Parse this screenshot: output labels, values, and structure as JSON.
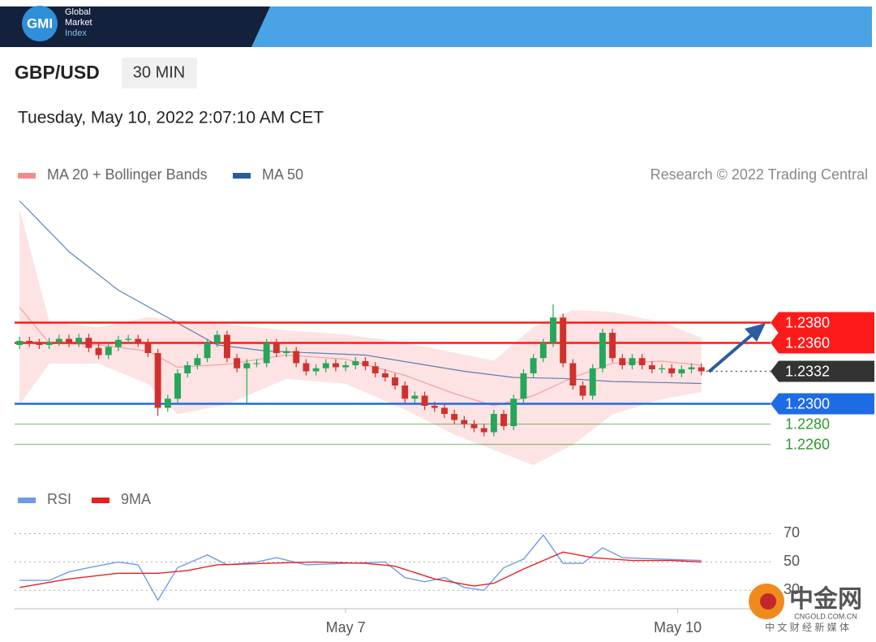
{
  "page": {
    "header": {
      "logo": "GMI",
      "brand": [
        "Global",
        "Market",
        "Index"
      ]
    },
    "symbol": "GBP/USD",
    "interval": "30 MIN",
    "timestamp": "Tuesday, May 10, 2022 2:07:10 AM CET",
    "watermark": {
      "name": "中金网",
      "site": "CNGOLD.COM.CN",
      "slogan": "中 文 财 经 新 媒 体"
    }
  },
  "chart_data": [
    {
      "type": "candlestick",
      "credit": "Research © 2022 Trading Central",
      "xlim": [
        -0.5,
        76
      ],
      "ylim": [
        1.223,
        1.2506
      ],
      "up_color": "#26a65b",
      "down_color": "#d0312d",
      "x": [
        0,
        1,
        2,
        3,
        4,
        5,
        6,
        7,
        8,
        9,
        10,
        11,
        12,
        13,
        14,
        15,
        16,
        17,
        18,
        19,
        20,
        21,
        22,
        23,
        24,
        25,
        26,
        27,
        28,
        29,
        30,
        31,
        32,
        33,
        34,
        35,
        36,
        37,
        38,
        39,
        40,
        41,
        42,
        43,
        44,
        45,
        46,
        47,
        48,
        49,
        50,
        51,
        52,
        53,
        54,
        55,
        56,
        57,
        58,
        59,
        60,
        61,
        62,
        63,
        64,
        65,
        66,
        67,
        68,
        69
      ],
      "open": [
        1.2358,
        1.2362,
        1.236,
        1.2358,
        1.2361,
        1.2364,
        1.236,
        1.2365,
        1.2355,
        1.2348,
        1.2356,
        1.2363,
        1.2364,
        1.236,
        1.235,
        1.2296,
        1.2305,
        1.233,
        1.2338,
        1.2345,
        1.236,
        1.2368,
        1.2345,
        1.2335,
        1.234,
        1.234,
        1.236,
        1.235,
        1.2352,
        1.234,
        1.2332,
        1.2335,
        1.234,
        1.2336,
        1.2338,
        1.2342,
        1.2337,
        1.233,
        1.2326,
        1.2318,
        1.2305,
        1.2308,
        1.2298,
        1.2296,
        1.229,
        1.2284,
        1.228,
        1.2276,
        1.2272,
        1.229,
        1.2278,
        1.2305,
        1.233,
        1.2345,
        1.236,
        1.2385,
        1.234,
        1.2318,
        1.2308,
        1.2335,
        1.237,
        1.2345,
        1.2338,
        1.2345,
        1.2338,
        1.2334,
        1.2335,
        1.233,
        1.2334,
        1.2336
      ],
      "high": [
        1.2366,
        1.2366,
        1.2364,
        1.2365,
        1.2368,
        1.2368,
        1.2369,
        1.2369,
        1.2359,
        1.236,
        1.2367,
        1.2368,
        1.2368,
        1.2364,
        1.2354,
        1.2309,
        1.2334,
        1.2342,
        1.2349,
        1.2364,
        1.2372,
        1.2372,
        1.2349,
        1.2344,
        1.2344,
        1.2364,
        1.2364,
        1.2356,
        1.2356,
        1.2344,
        1.2339,
        1.2344,
        1.2344,
        1.2342,
        1.2346,
        1.2346,
        1.2341,
        1.2334,
        1.233,
        1.2322,
        1.2312,
        1.2312,
        1.2302,
        1.23,
        1.2294,
        1.2288,
        1.2284,
        1.228,
        1.2294,
        1.2294,
        1.2309,
        1.2334,
        1.2349,
        1.2364,
        1.2398,
        1.2389,
        1.2344,
        1.2322,
        1.2339,
        1.2374,
        1.2374,
        1.2349,
        1.2349,
        1.2349,
        1.2342,
        1.2339,
        1.2339,
        1.2338,
        1.234,
        1.234
      ],
      "low": [
        1.2354,
        1.2356,
        1.2354,
        1.2354,
        1.2357,
        1.2356,
        1.2356,
        1.2351,
        1.2344,
        1.2344,
        1.2352,
        1.2359,
        1.2356,
        1.2346,
        1.2288,
        1.2292,
        1.2301,
        1.2326,
        1.2334,
        1.2341,
        1.2356,
        1.2341,
        1.2331,
        1.23,
        1.2336,
        1.2336,
        1.2346,
        1.2346,
        1.2336,
        1.2328,
        1.2328,
        1.2331,
        1.2332,
        1.2332,
        1.2334,
        1.2333,
        1.2326,
        1.2322,
        1.2314,
        1.2301,
        1.2301,
        1.2294,
        1.2292,
        1.2286,
        1.228,
        1.2276,
        1.2272,
        1.2268,
        1.2268,
        1.2274,
        1.2274,
        1.2301,
        1.2326,
        1.2341,
        1.2356,
        1.2336,
        1.2314,
        1.2304,
        1.2304,
        1.2331,
        1.2341,
        1.2334,
        1.2334,
        1.2334,
        1.233,
        1.233,
        1.2326,
        1.2326,
        1.233,
        1.2328
      ],
      "close": [
        1.2362,
        1.236,
        1.2358,
        1.2361,
        1.2364,
        1.236,
        1.2365,
        1.2355,
        1.2348,
        1.2356,
        1.2363,
        1.2364,
        1.236,
        1.235,
        1.2296,
        1.2305,
        1.233,
        1.2338,
        1.2345,
        1.236,
        1.2368,
        1.2345,
        1.2335,
        1.234,
        1.234,
        1.236,
        1.235,
        1.2352,
        1.234,
        1.2332,
        1.2335,
        1.234,
        1.2336,
        1.2338,
        1.2342,
        1.2337,
        1.233,
        1.2326,
        1.2318,
        1.2305,
        1.2308,
        1.2298,
        1.2296,
        1.229,
        1.2284,
        1.228,
        1.2276,
        1.2272,
        1.229,
        1.2278,
        1.2305,
        1.233,
        1.2345,
        1.236,
        1.2385,
        1.234,
        1.2318,
        1.2308,
        1.2335,
        1.237,
        1.2345,
        1.2338,
        1.2345,
        1.2338,
        1.2334,
        1.2335,
        1.233,
        1.2334,
        1.2336,
        1.2332
      ],
      "series": [
        {
          "name": "MA 20 + Bollinger Bands",
          "color": "#f28b8b",
          "band_color": "#fde3e3",
          "x": [
            0,
            3,
            8,
            13,
            16,
            21,
            27,
            33,
            39,
            44,
            48,
            52,
            56,
            60,
            65,
            69
          ],
          "values": [
            1.2395,
            1.236,
            1.2358,
            1.2352,
            1.2336,
            1.2339,
            1.2348,
            1.2344,
            1.2328,
            1.231,
            1.2298,
            1.2308,
            1.2326,
            1.234,
            1.2342,
            1.2338
          ],
          "upper": [
            1.249,
            1.238,
            1.2375,
            1.2385,
            1.2382,
            1.2378,
            1.2372,
            1.2368,
            1.236,
            1.235,
            1.2342,
            1.2375,
            1.2392,
            1.239,
            1.238,
            1.2365
          ],
          "lower": [
            1.23,
            1.234,
            1.234,
            1.232,
            1.229,
            1.23,
            1.2325,
            1.232,
            1.2295,
            1.227,
            1.2255,
            1.224,
            1.226,
            1.229,
            1.2305,
            1.2312
          ]
        },
        {
          "name": "MA 50",
          "color": "#2a5d9f",
          "x": [
            0,
            5,
            10,
            15,
            20,
            25,
            30,
            35,
            40,
            45,
            50,
            55,
            60,
            65,
            69
          ],
          "values": [
            1.25,
            1.245,
            1.2412,
            1.2385,
            1.2358,
            1.2352,
            1.235,
            1.2348,
            1.234,
            1.2332,
            1.2326,
            1.2325,
            1.2322,
            1.2321,
            1.232
          ]
        }
      ],
      "levels": [
        {
          "value": 1.238,
          "label": "1.2380",
          "color": "#ff1a1a",
          "label_style": "tag"
        },
        {
          "value": 1.236,
          "label": "1.2360",
          "color": "#ff1a1a",
          "label_style": "tag"
        },
        {
          "value": 1.23,
          "label": "1.2300",
          "color": "#1e6be6",
          "label_style": "tag"
        },
        {
          "value": 1.228,
          "label": "1.2280",
          "color": "#2e9a2e",
          "label_style": "text"
        },
        {
          "value": 1.226,
          "label": "1.2260",
          "color": "#2e9a2e",
          "label_style": "text"
        }
      ],
      "last_price": 1.2332,
      "last_price_color": "#333333"
    },
    {
      "type": "line",
      "xlim": [
        -0.5,
        76
      ],
      "ylim": [
        17,
        80
      ],
      "yticks": [
        30,
        50,
        70
      ],
      "grid": true,
      "xticks": [
        {
          "value": 33,
          "label": "May 7"
        },
        {
          "value": 66.6,
          "label": "May 10"
        }
      ],
      "series": [
        {
          "name": "RSI",
          "color": "#6e9be6",
          "x": [
            0,
            3,
            5,
            7,
            10,
            12,
            14,
            16,
            19,
            21,
            24,
            26,
            29,
            33,
            37,
            39,
            41,
            43,
            45,
            47,
            49,
            51,
            53,
            55,
            57,
            59,
            61,
            65,
            69
          ],
          "values": [
            37,
            37,
            43,
            46,
            50,
            48,
            23,
            46,
            55,
            48,
            50,
            53,
            48,
            49,
            50,
            39,
            36,
            39,
            32,
            30,
            46,
            52,
            69,
            49,
            49,
            60,
            53,
            52,
            51
          ]
        },
        {
          "name": "9MA",
          "color": "#e62020",
          "x": [
            0,
            5,
            10,
            14,
            17,
            20,
            25,
            30,
            35,
            38,
            42,
            46,
            48,
            51,
            55,
            58,
            62,
            66,
            69
          ],
          "values": [
            32,
            38,
            42,
            42,
            44,
            48,
            49,
            50,
            49,
            47,
            38,
            33,
            35,
            45,
            57,
            53,
            51,
            51,
            50
          ]
        }
      ]
    }
  ]
}
